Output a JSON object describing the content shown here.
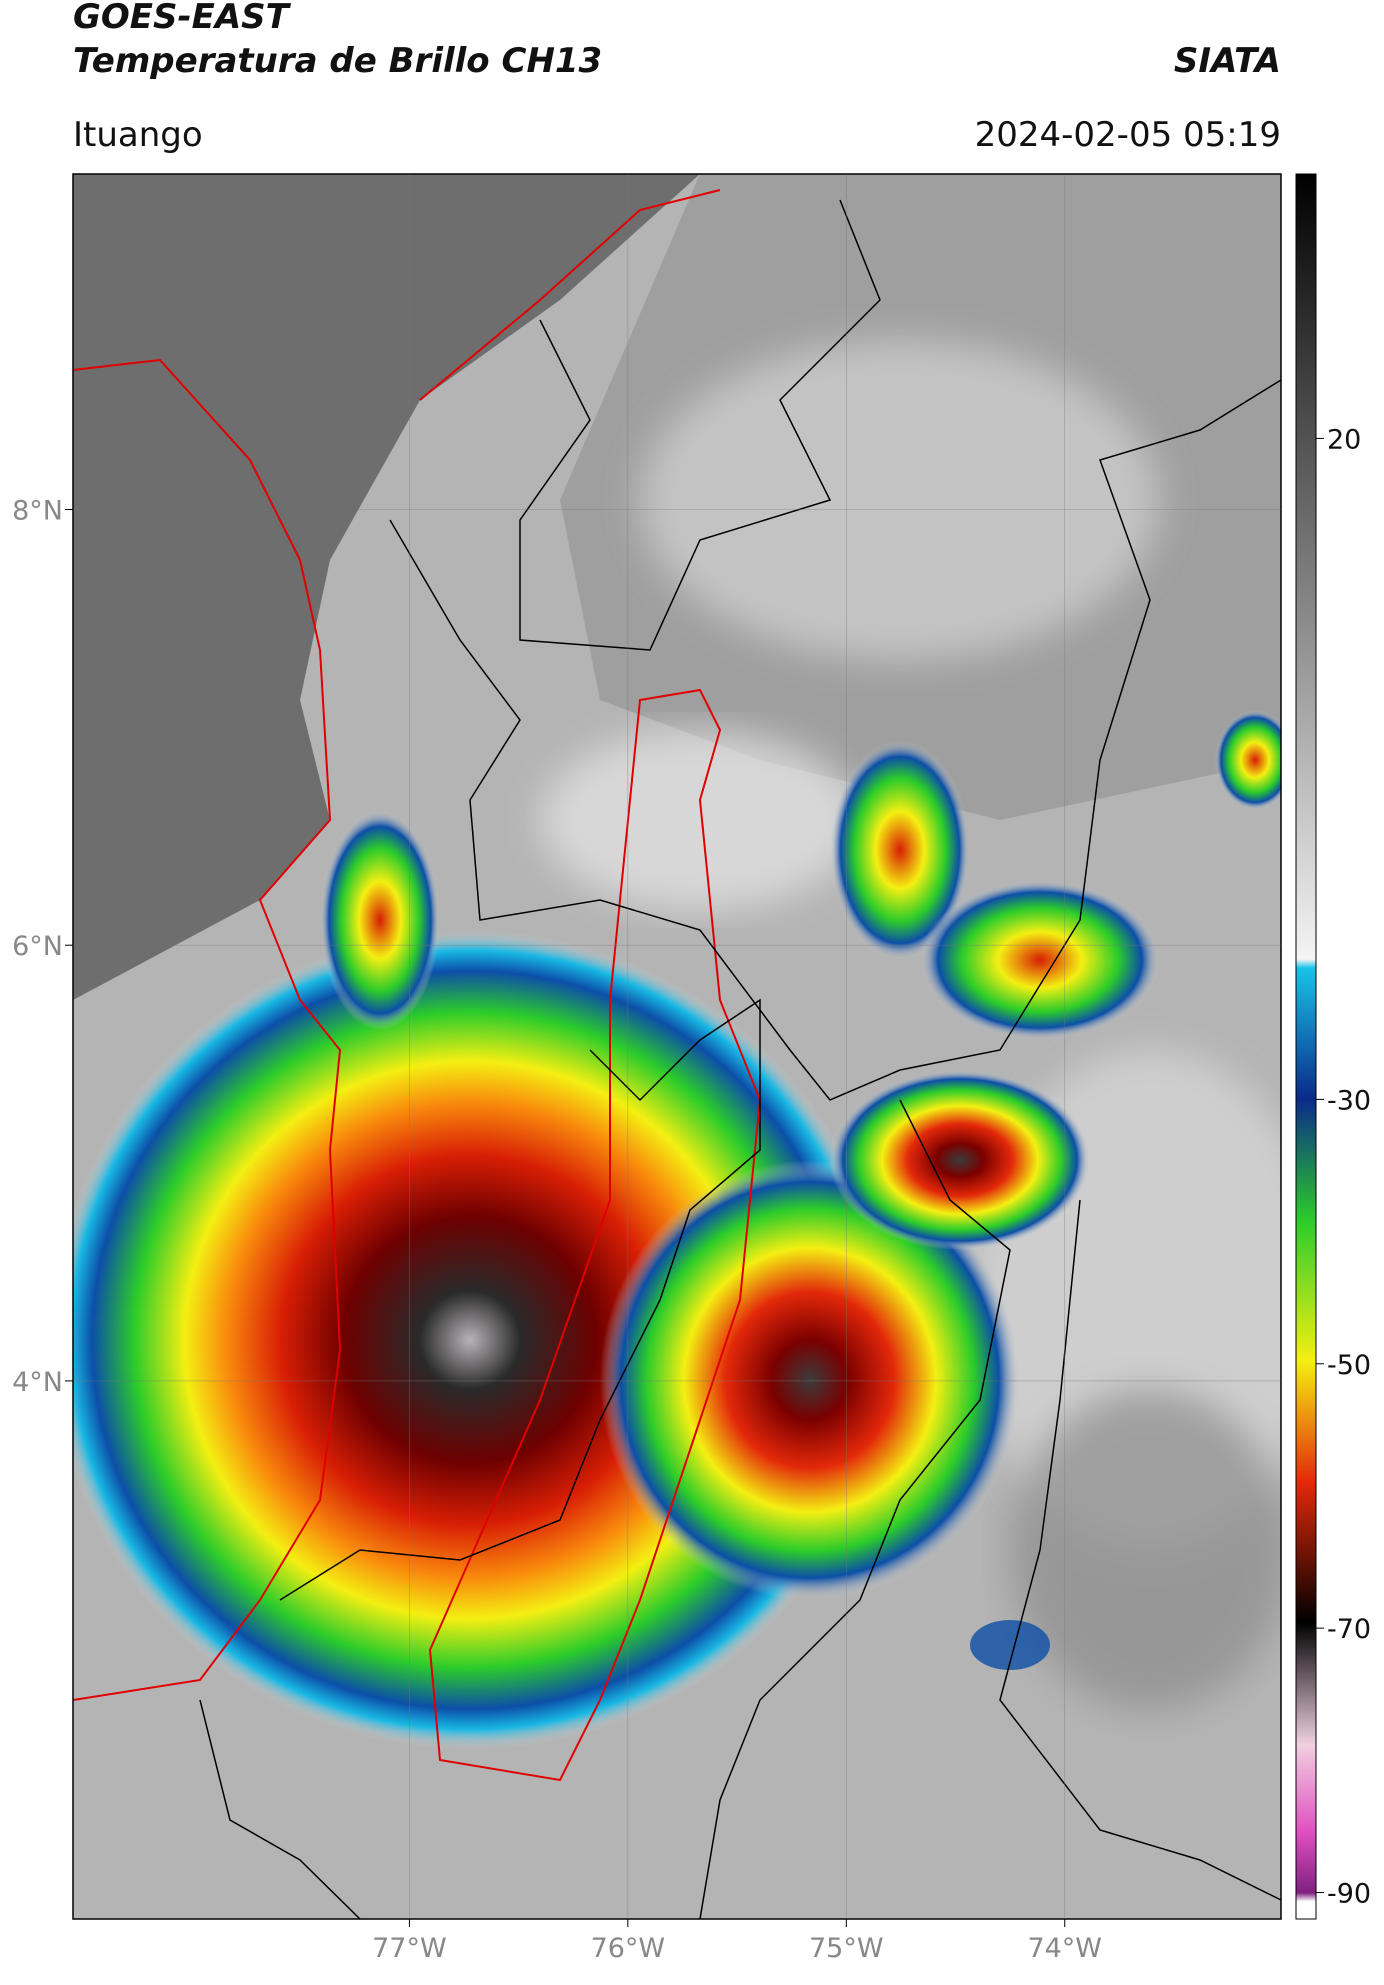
{
  "header": {
    "title": "GOES-EAST",
    "subtitle": "Temperatura de Brillo CH13",
    "organization": "SIATA",
    "location": "Ituango",
    "datetime": "2024-02-05 05:19"
  },
  "map": {
    "xlim": [
      -78.54,
      -73.01
    ],
    "ylim": [
      1.53,
      9.54
    ],
    "xticks": [
      {
        "value": -77,
        "label": "77°W"
      },
      {
        "value": -76,
        "label": "76°W"
      },
      {
        "value": -75,
        "label": "75°W"
      },
      {
        "value": -74,
        "label": "74°W"
      }
    ],
    "yticks": [
      {
        "value": 8,
        "label": "8°N"
      },
      {
        "value": 6,
        "label": "6°N"
      },
      {
        "value": 4,
        "label": "4°N"
      }
    ],
    "grid": true
  },
  "colorbar": {
    "lim": [
      40,
      -92
    ],
    "ticks": [
      20,
      -30,
      -50,
      -70,
      -90
    ]
  }
}
